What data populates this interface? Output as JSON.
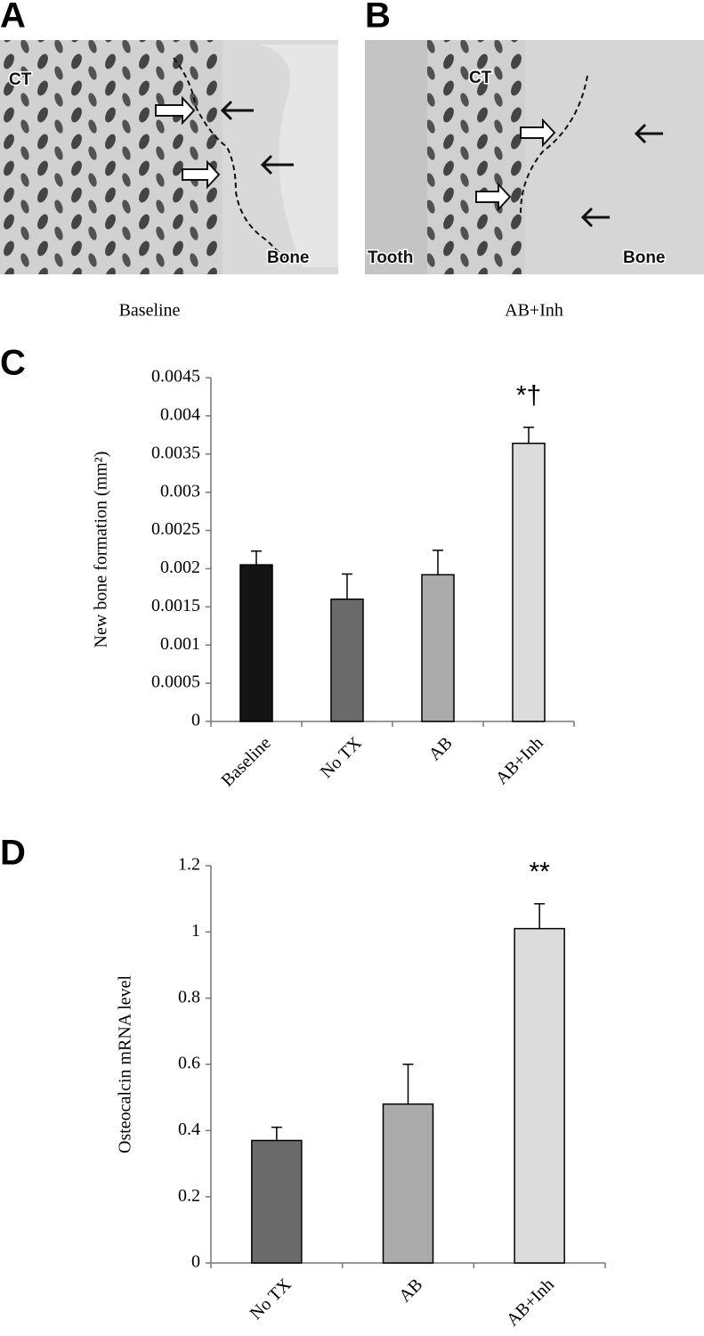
{
  "panels": [
    {
      "letter": "A",
      "caption": "Baseline",
      "labels": [
        "CT",
        "Bone"
      ]
    },
    {
      "letter": "B",
      "caption": "AB+Inh",
      "labels": [
        "CT",
        "Tooth",
        "Bone"
      ]
    }
  ],
  "chart_data": [
    {
      "type": "bar",
      "letter": "C",
      "ylabel": "New bone formation (mm²)",
      "categories": [
        "Baseline",
        "No TX",
        "AB",
        "AB+Inh"
      ],
      "values": [
        0.00205,
        0.0016,
        0.00192,
        0.00364
      ],
      "errors": [
        0.00018,
        0.00033,
        0.00032,
        0.00021
      ],
      "colors": [
        "#141414",
        "#6a6a6a",
        "#ababab",
        "#dcdcdc"
      ],
      "annotation": "*†",
      "ylim": [
        0,
        0.0045
      ],
      "yticks": [
        0,
        0.0005,
        0.001,
        0.0015,
        0.002,
        0.0025,
        0.003,
        0.0035,
        0.004,
        0.0045
      ]
    },
    {
      "type": "bar",
      "letter": "D",
      "ylabel": "Osteocalcin  mRNA level",
      "categories": [
        "No TX",
        "AB",
        "AB+Inh"
      ],
      "values": [
        0.37,
        0.48,
        1.01
      ],
      "errors": [
        0.04,
        0.12,
        0.075
      ],
      "colors": [
        "#6a6a6a",
        "#ababab",
        "#dcdcdc"
      ],
      "annotation": "**",
      "ylim": [
        0,
        1.2
      ],
      "yticks": [
        0,
        0.2,
        0.4,
        0.6,
        0.8,
        1,
        1.2
      ]
    }
  ]
}
